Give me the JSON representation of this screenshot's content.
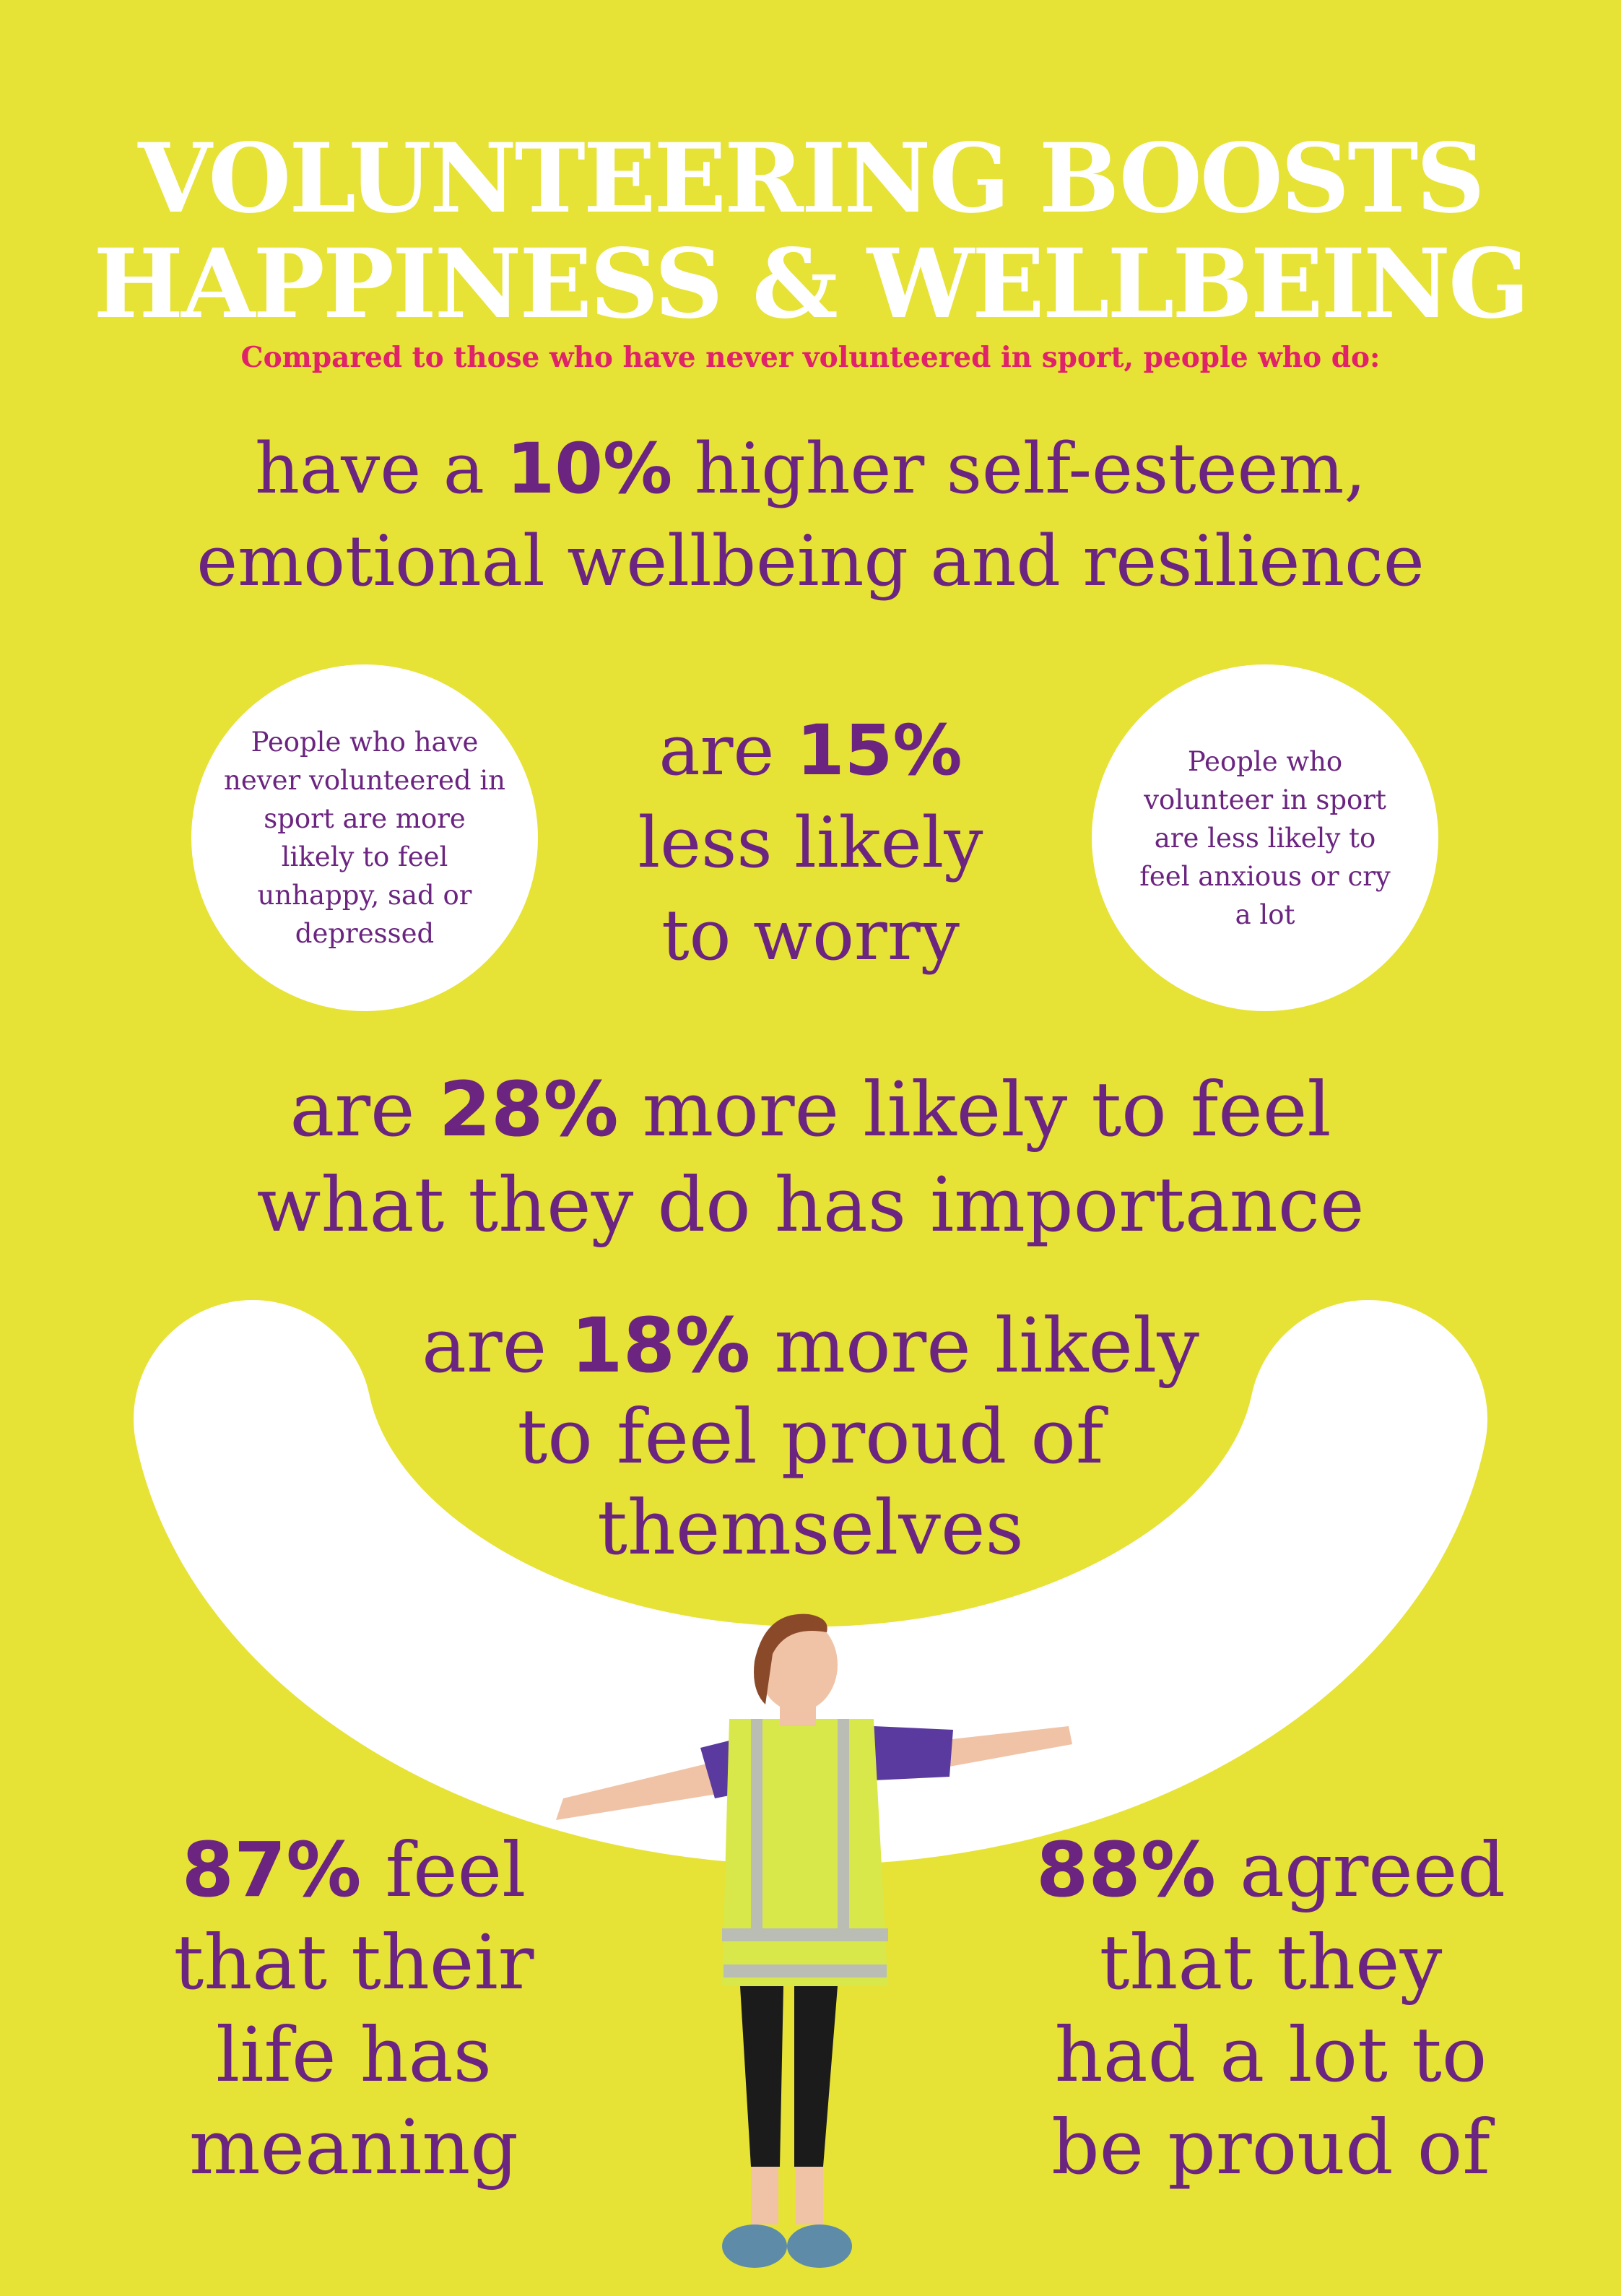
{
  "header": {
    "title_line1": "VOLUNTEERING BOOSTS",
    "title_line2": "HAPPINESS & WELLBEING",
    "subtitle": "Compared to those who have never volunteered in sport, people who do:"
  },
  "stats": {
    "self_esteem": {
      "pre": "have a ",
      "value": "10%",
      "post_line1": " higher self-esteem,",
      "line2": "emotional wellbeing and resilience"
    },
    "worry": {
      "pre": "are ",
      "value": "15%",
      "line2": "less likely",
      "line3": "to worry"
    },
    "importance": {
      "pre": "are ",
      "value": "28%",
      "post_line1": " more likely to feel",
      "line2": "what they do has importance"
    },
    "proud": {
      "pre": "are ",
      "value": "18%",
      "post_line1": " more likely",
      "line2": "to feel proud of",
      "line3": "themselves"
    },
    "meaning": {
      "value": "87%",
      "post_line1": " feel",
      "line2": "that their",
      "line3": "life has",
      "line4": "meaning"
    },
    "agreed": {
      "value": "88%",
      "post_line1": " agreed",
      "line2": "that they",
      "line3": "had a lot to",
      "line4": "be proud of"
    }
  },
  "circles": {
    "left": "People who have never volunteered in sport are more likely to feel unhappy, sad or depressed",
    "right": "People who volunteer in sport are less likely to feel anxious or cry a lot"
  },
  "colors": {
    "background": "#e6e236",
    "title": "#ffffff",
    "subtitle": "#e0226a",
    "body_text": "#6b2580"
  },
  "images": {
    "smile": "white-smile-arc",
    "photo": "volunteer-woman-in-hi-vis-vest"
  }
}
